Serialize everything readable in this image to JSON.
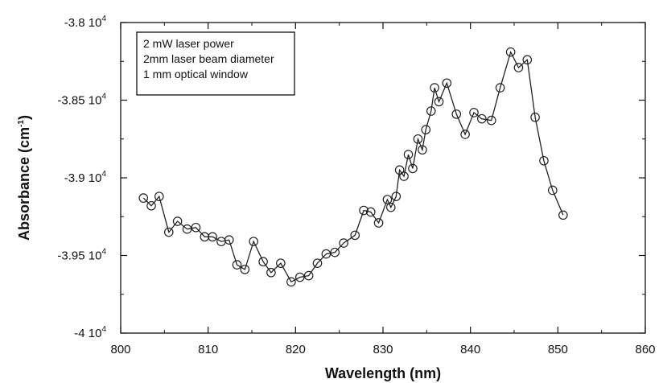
{
  "chart_data": {
    "type": "line",
    "title": "",
    "xlabel": "Wavelength (nm)",
    "ylabel": "Absorbance (cm",
    "ylabel_sup": "-1",
    "ylabel_close": ")",
    "xlim": [
      800,
      860
    ],
    "ylim": [
      -40000,
      -38000
    ],
    "x_ticks": [
      800,
      810,
      820,
      830,
      840,
      850,
      860
    ],
    "x_tick_labels": [
      "800",
      "810",
      "820",
      "830",
      "840",
      "850",
      "860"
    ],
    "y_ticks": [
      -38000,
      -38500,
      -39000,
      -39500,
      -40000
    ],
    "y_tick_labels": [
      {
        "mantissa": "-3.8 10",
        "exp": "4"
      },
      {
        "mantissa": "-3.85 10",
        "exp": "4"
      },
      {
        "mantissa": "-3.9 10",
        "exp": "4"
      },
      {
        "mantissa": "-3.95 10",
        "exp": "4"
      },
      {
        "mantissa": "-4 10",
        "exp": "4"
      }
    ],
    "grid": false,
    "legend_placement": "top-left",
    "annotation_lines": [
      "2 mW laser power",
      "2mm laser beam diameter",
      "1 mm optical window"
    ],
    "marker": "open-circle",
    "line_color": "#222222",
    "series": [
      {
        "x": [
          802.6,
          803.5,
          804.4,
          805.5,
          806.5,
          807.6,
          808.6,
          809.6,
          810.5,
          811.5,
          812.4,
          813.3,
          814.2,
          815.2,
          816.3,
          817.2,
          818.3,
          819.5,
          820.5,
          821.5,
          822.5,
          823.5,
          824.5,
          825.5,
          826.8,
          827.8,
          828.6,
          829.5,
          830.5,
          830.9,
          831.5,
          831.9,
          832.4,
          832.9,
          833.4,
          834.0,
          834.5,
          834.9,
          835.5,
          835.9,
          836.4,
          837.3,
          838.4,
          839.4,
          840.4,
          841.3,
          842.4,
          843.4,
          844.6,
          845.5,
          846.5,
          847.4,
          848.4,
          849.4,
          850.6
        ],
        "y": [
          -39130,
          -39180,
          -39120,
          -39350,
          -39280,
          -39330,
          -39320,
          -39380,
          -39380,
          -39410,
          -39400,
          -39560,
          -39590,
          -39410,
          -39540,
          -39610,
          -39550,
          -39670,
          -39640,
          -39630,
          -39550,
          -39490,
          -39480,
          -39420,
          -39370,
          -39210,
          -39220,
          -39290,
          -39140,
          -39190,
          -39120,
          -38950,
          -38990,
          -38850,
          -38940,
          -38750,
          -38820,
          -38690,
          -38570,
          -38420,
          -38510,
          -38390,
          -38590,
          -38720,
          -38580,
          -38620,
          -38630,
          -38420,
          -38190,
          -38290,
          -38240,
          -38610,
          -38890,
          -39080,
          -39240
        ]
      }
    ]
  }
}
